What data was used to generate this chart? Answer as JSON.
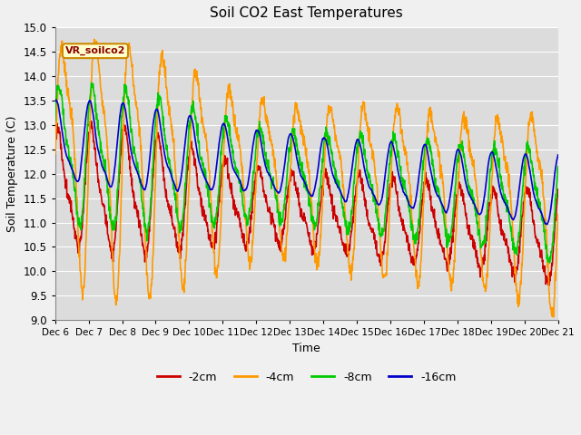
{
  "title": "Soil CO2 East Temperatures",
  "xlabel": "Time",
  "ylabel": "Soil Temperature (C)",
  "ylim": [
    9.0,
    15.0
  ],
  "yticks": [
    9.0,
    9.5,
    10.0,
    10.5,
    11.0,
    11.5,
    12.0,
    12.5,
    13.0,
    13.5,
    14.0,
    14.5,
    15.0
  ],
  "xtick_labels": [
    "Dec 6",
    "Dec 7",
    "Dec 8",
    "Dec 9",
    "Dec 10",
    "Dec 11",
    "Dec 12",
    "Dec 13",
    "Dec 14",
    "Dec 15",
    "Dec 16",
    "Dec 17",
    "Dec 18",
    "Dec 19",
    "Dec 20",
    "Dec 21"
  ],
  "colors": {
    "-2cm": "#cc0000",
    "-4cm": "#ff9900",
    "-8cm": "#00cc00",
    "-16cm": "#0000cc"
  },
  "legend_label": "VR_soilco2",
  "bg_color": "#dcdcdc",
  "grid_color": "#ffffff",
  "line_width": 1.2,
  "fig_width": 6.4,
  "fig_height": 4.8,
  "dpi": 100
}
